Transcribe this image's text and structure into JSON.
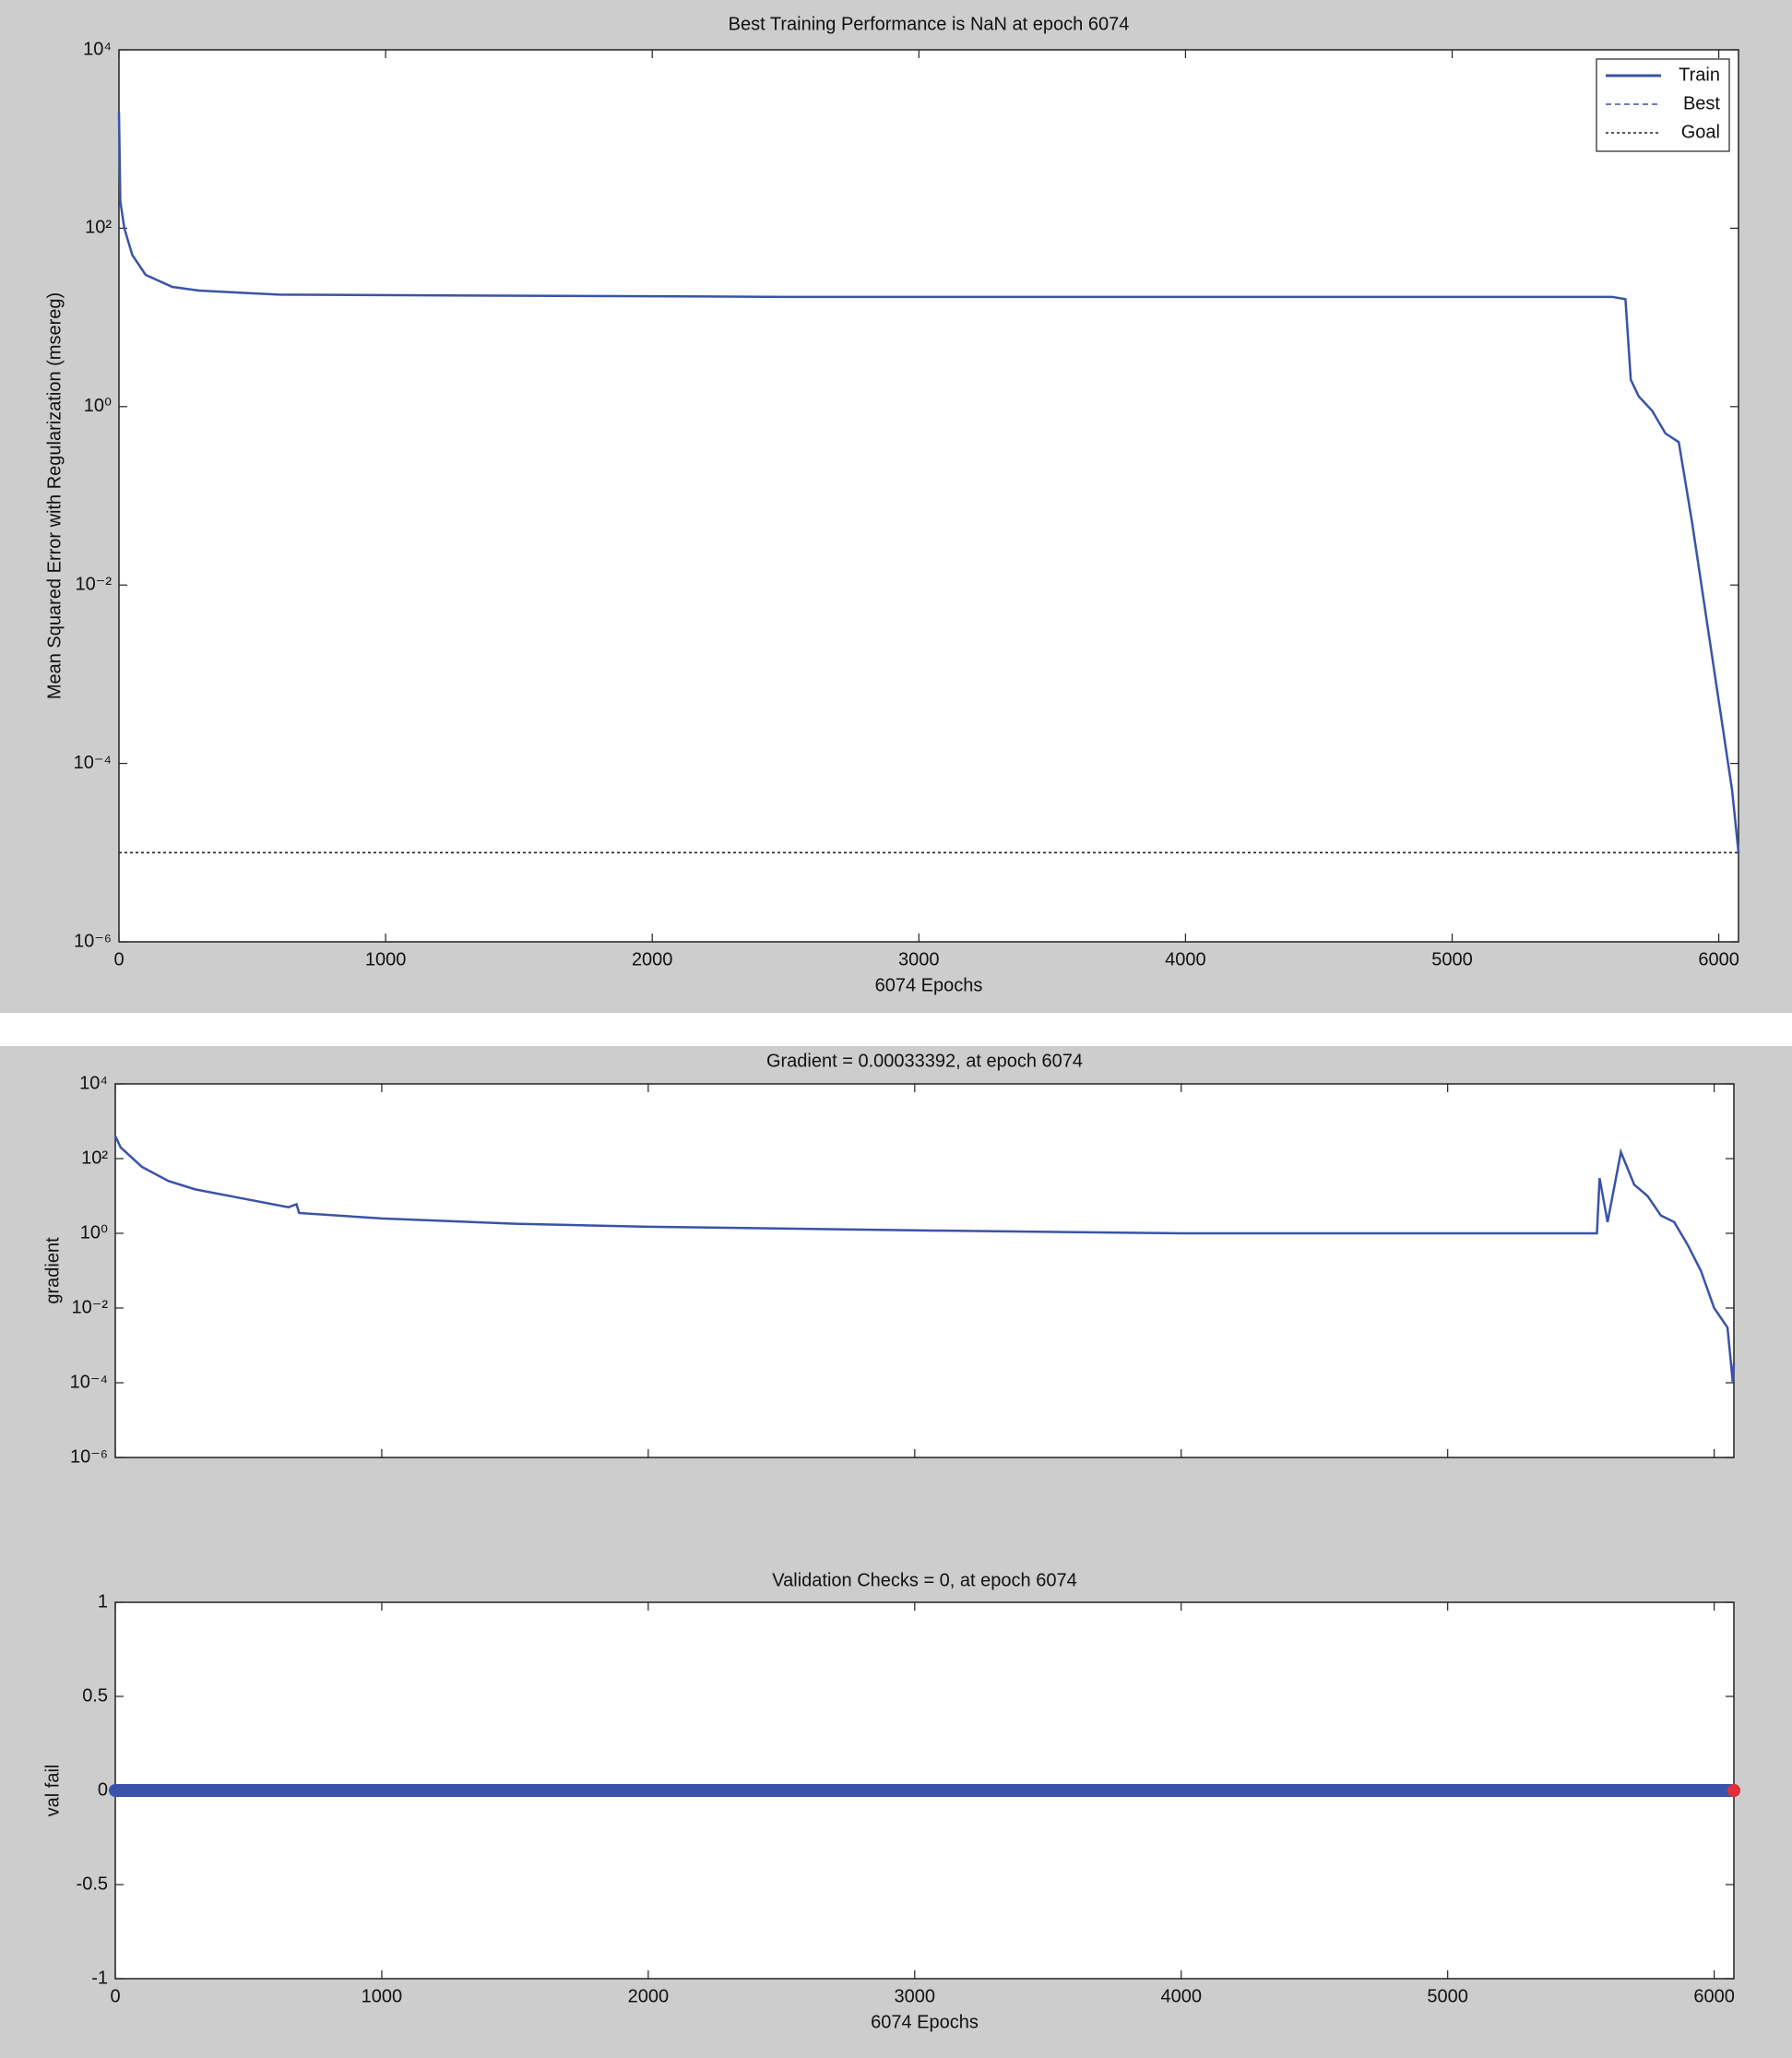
{
  "chart_data": [
    {
      "type": "line",
      "title": "Best Training Performance is NaN at epoch 6074",
      "xlabel": "6074 Epochs",
      "ylabel": "Mean Squared Error with Regularization  (msereg)",
      "yscale": "log",
      "xlim": [
        0,
        6074
      ],
      "ylim": [
        1e-06,
        10000
      ],
      "xticks": [
        0,
        1000,
        2000,
        3000,
        4000,
        5000,
        6000
      ],
      "show_xtick_labels": true,
      "yticks": [
        {
          "value": 10000,
          "label": "10⁴"
        },
        {
          "value": 100,
          "label": "10²"
        },
        {
          "value": 1,
          "label": "10⁰"
        },
        {
          "value": 0.01,
          "label": "10⁻²"
        },
        {
          "value": 0.0001,
          "label": "10⁻⁴"
        },
        {
          "value": 1e-06,
          "label": "10⁻⁶"
        }
      ],
      "legend": "upper right",
      "series": [
        {
          "name": "Train",
          "color": "#3a53a8",
          "style": "solid",
          "x": [
            0,
            5,
            20,
            50,
            100,
            200,
            300,
            600,
            2500,
            5600,
            5650,
            5670,
            5700,
            5750,
            5800,
            5850,
            5900,
            5950,
            6000,
            6050,
            6074
          ],
          "values": [
            2000,
            200,
            100,
            50,
            30,
            22,
            20,
            18,
            17,
            17,
            16,
            2,
            1.3,
            0.9,
            0.5,
            0.4,
            0.05,
            0.005,
            0.0005,
            5e-05,
            1e-05
          ]
        },
        {
          "name": "Best",
          "color": "#3a53a8",
          "style": "dashed",
          "x": [],
          "values": []
        },
        {
          "name": "Goal",
          "color": "#222222",
          "style": "dotted",
          "x": [
            0,
            6074
          ],
          "values": [
            1e-05,
            1e-05
          ]
        }
      ]
    },
    {
      "type": "line",
      "title": "Gradient = 0.00033392, at epoch 6074",
      "ylabel": "gradient",
      "yscale": "log",
      "xlim": [
        0,
        6074
      ],
      "ylim": [
        1e-06,
        10000
      ],
      "xticks": [
        0,
        1000,
        2000,
        3000,
        4000,
        5000,
        6000
      ],
      "show_xtick_labels": false,
      "yticks": [
        {
          "value": 10000,
          "label": "10⁴"
        },
        {
          "value": 100,
          "label": "10²"
        },
        {
          "value": 1,
          "label": "10⁰"
        },
        {
          "value": 0.01,
          "label": "10⁻²"
        },
        {
          "value": 0.0001,
          "label": "10⁻⁴"
        },
        {
          "value": 1e-06,
          "label": "10⁻⁶"
        }
      ],
      "series": [
        {
          "color": "#3a53a8",
          "style": "solid",
          "x": [
            0,
            20,
            100,
            200,
            300,
            500,
            650,
            680,
            690,
            1000,
            1500,
            2000,
            3000,
            4000,
            5000,
            5560,
            5570,
            5600,
            5650,
            5700,
            5750,
            5800,
            5850,
            5900,
            5950,
            6000,
            6050,
            6070,
            6074
          ],
          "values": [
            400,
            200,
            60,
            25,
            15,
            8,
            5,
            6,
            3.5,
            2.5,
            1.8,
            1.5,
            1.2,
            1,
            1,
            1,
            30,
            2,
            150,
            20,
            10,
            3,
            2,
            0.5,
            0.1,
            0.01,
            0.003,
            0.0001,
            0.00033392
          ]
        }
      ]
    },
    {
      "type": "line",
      "title": "Validation Checks = 0, at epoch 6074",
      "xlabel": "6074 Epochs",
      "ylabel": "val fail",
      "yscale": "linear",
      "xlim": [
        0,
        6074
      ],
      "ylim": [
        -1,
        1
      ],
      "xticks": [
        0,
        1000,
        2000,
        3000,
        4000,
        5000,
        6000
      ],
      "show_xtick_labels": true,
      "yticks": [
        -1,
        -0.5,
        0,
        0.5,
        1
      ],
      "series": [
        {
          "color": "#3a53a8",
          "style": "thick",
          "x": [
            0,
            6074
          ],
          "values": [
            0,
            0
          ]
        }
      ],
      "marker_point": {
        "x": 6074,
        "value": 0,
        "color": "#e0303a"
      }
    }
  ]
}
